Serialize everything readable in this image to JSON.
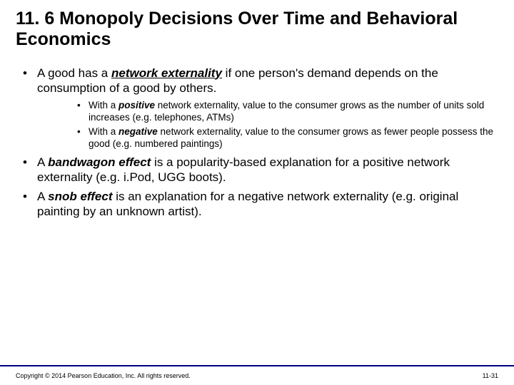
{
  "title": "11. 6  Monopoly Decisions Over Time and Behavioral Economics",
  "bullets": {
    "b1_pre": "A good has a ",
    "b1_term": "network externality",
    "b1_post": " if one person's demand depends on the consumption of a good by others.",
    "b1a_pre": "With a ",
    "b1a_term": "positive",
    "b1a_post": " network externality, value to the consumer grows as the number of units sold increases (e.g. telephones,  ATMs)",
    "b1b_pre": "With a ",
    "b1b_term": "negative",
    "b1b_post": " network externality, value to the consumer grows as fewer people possess the good (e.g. numbered paintings)",
    "b2_pre": "A ",
    "b2_term": "bandwagon effect",
    "b2_post": " is a popularity-based explanation for a positive network externality (e.g. i.Pod, UGG boots).",
    "b3_pre": "A ",
    "b3_term": "snob effect",
    "b3_post": " is an explanation for a negative network externality (e.g. original painting by an unknown artist)."
  },
  "footer": {
    "copyright": "Copyright © 2014 Pearson Education, Inc. All rights reserved.",
    "pagenum": "11-31"
  },
  "colors": {
    "accent": "#000080",
    "text": "#000000",
    "background": "#ffffff"
  }
}
